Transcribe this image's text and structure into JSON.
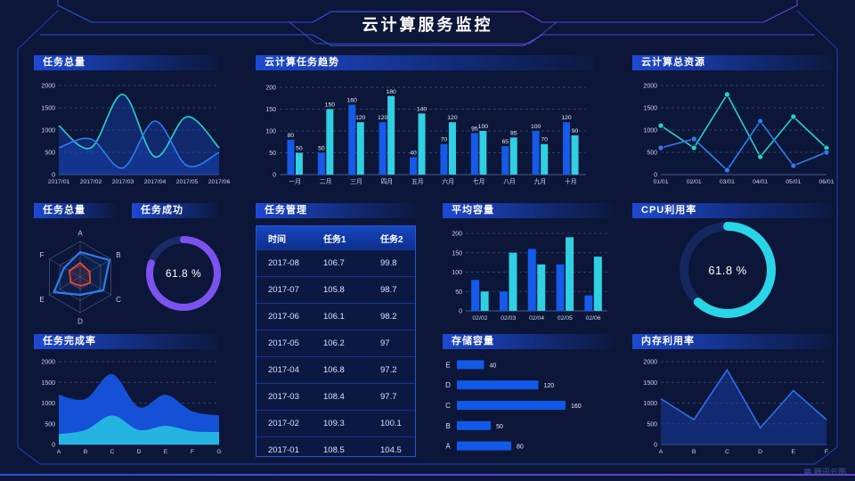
{
  "header": {
    "title": "云计算服务监控"
  },
  "watermark": {
    "label": "腾讯云图"
  },
  "colors": {
    "background": "#0b1638",
    "panel_header": "#1d49d2",
    "series_blue": "#155ae8",
    "series_cyan": "#2fd0e2",
    "line_blue": "#2e7df0",
    "line_cyan": "#28d2cc",
    "gauge_purple": "#7b52ee",
    "gauge_cyan": "#29d6e8",
    "radar_red": "#ff4326"
  },
  "panels": {
    "task_total": {
      "title": "任务总量"
    },
    "task_trend": {
      "title": "云计算任务趋势"
    },
    "total_resource": {
      "title": "云计算总资源"
    },
    "task_radar": {
      "title": "任务总量"
    },
    "task_success": {
      "title": "任务成功",
      "value": "61.8 %"
    },
    "task_manage": {
      "title": "任务管理"
    },
    "avg_capacity": {
      "title": "平均容量"
    },
    "cpu_usage": {
      "title": "CPU利用率",
      "value": "61.8 %"
    },
    "task_completion": {
      "title": "任务完成率"
    },
    "storage": {
      "title": "存储容量"
    },
    "memory": {
      "title": "内存利用率"
    }
  },
  "table": {
    "headers": [
      "时间",
      "任务1",
      "任务2"
    ],
    "rows": [
      [
        "2017-08",
        "106.7",
        "99.8"
      ],
      [
        "2017-07",
        "105.8",
        "98.7"
      ],
      [
        "2017-06",
        "106.1",
        "98.2"
      ],
      [
        "2017-05",
        "106.2",
        "97"
      ],
      [
        "2017-04",
        "106.8",
        "97.2"
      ],
      [
        "2017-03",
        "108.4",
        "97.7"
      ],
      [
        "2017-02",
        "109.3",
        "100.1"
      ],
      [
        "2017-01",
        "108.5",
        "104.5"
      ]
    ]
  },
  "chart_data": [
    {
      "id": "task_total",
      "type": "area",
      "title": "任务总量",
      "smooth": true,
      "x": [
        "2017/01",
        "2017/02",
        "2017/03",
        "2017/04",
        "2017/05",
        "2017/06"
      ],
      "series": [
        {
          "name": "cyan",
          "color": "#28d2cc",
          "values": [
            1100,
            600,
            1800,
            400,
            1300,
            600
          ]
        },
        {
          "name": "blue",
          "color": "#2e7df0",
          "values": [
            600,
            800,
            150,
            1200,
            200,
            500
          ]
        }
      ],
      "ylim": [
        0,
        2000
      ],
      "yticks": [
        0,
        500,
        1000,
        1500,
        2000
      ],
      "fill": "rgba(25,70,190,0.40)"
    },
    {
      "id": "task_trend",
      "type": "bar",
      "title": "云计算任务趋势",
      "labels": true,
      "x": [
        "一月",
        "二月",
        "三月",
        "四月",
        "五月",
        "六月",
        "七月",
        "八月",
        "九月",
        "十月"
      ],
      "series": [
        {
          "name": "任务1",
          "color": "#155ae8",
          "values": [
            80,
            50,
            160,
            120,
            40,
            70,
            95,
            65,
            100,
            120
          ]
        },
        {
          "name": "任务2",
          "color": "#2fd0e2",
          "values": [
            50,
            150,
            120,
            180,
            140,
            120,
            100,
            85,
            70,
            90
          ]
        }
      ],
      "ylim": [
        0,
        200
      ],
      "yticks": [
        0,
        50,
        100,
        150,
        200
      ]
    },
    {
      "id": "total_resource",
      "type": "line",
      "title": "云计算总资源",
      "markers": true,
      "x": [
        "01/01",
        "02/01",
        "03/01",
        "04/01",
        "05/01",
        "06/01"
      ],
      "series": [
        {
          "name": "cyan",
          "color": "#28d2cc",
          "values": [
            1100,
            600,
            1800,
            400,
            1300,
            600
          ]
        },
        {
          "name": "blue",
          "color": "#2e7df0",
          "values": [
            600,
            800,
            100,
            1200,
            200,
            500
          ]
        }
      ],
      "ylim": [
        0,
        2000
      ],
      "yticks": [
        0,
        500,
        1000,
        1500,
        2000
      ]
    },
    {
      "id": "task_radar",
      "type": "radar",
      "title": "任务总量",
      "axes": [
        "A",
        "B",
        "C",
        "D",
        "E",
        "F"
      ],
      "max": 100,
      "series": [
        {
          "name": "blue",
          "color": "#2e7df0",
          "values": [
            70,
            95,
            75,
            50,
            85,
            52
          ]
        },
        {
          "name": "red",
          "color": "#ff4326",
          "values": [
            40,
            30,
            33,
            25,
            30,
            35
          ]
        }
      ]
    },
    {
      "id": "task_success",
      "type": "gauge",
      "title": "任务成功",
      "value": 61.8,
      "display": "61.8 %",
      "arc_fraction": 0.8,
      "color": "#7b52ee",
      "track": "#1c2a66"
    },
    {
      "id": "avg_capacity",
      "type": "bar",
      "title": "平均容量",
      "labels": false,
      "x": [
        "02/02",
        "02/03",
        "02/04",
        "02/05",
        "02/06"
      ],
      "series": [
        {
          "name": "blue",
          "color": "#155ae8",
          "values": [
            80,
            50,
            160,
            120,
            40
          ]
        },
        {
          "name": "cyan",
          "color": "#2fd0e2",
          "values": [
            50,
            150,
            120,
            190,
            140
          ]
        }
      ],
      "ylim": [
        0,
        200
      ],
      "yticks": [
        0,
        50,
        100,
        150,
        200
      ]
    },
    {
      "id": "cpu_usage",
      "type": "gauge",
      "title": "CPU利用率",
      "value": 61.8,
      "display": "61.8 %",
      "arc_fraction": 0.618,
      "color": "#29d6e8",
      "track": "#14275f"
    },
    {
      "id": "task_completion",
      "type": "area",
      "title": "任务完成率",
      "smooth": true,
      "opaque": true,
      "x": [
        "A",
        "B",
        "C",
        "D",
        "E",
        "F",
        "G"
      ],
      "series": [
        {
          "name": "blue",
          "color": "#1551d6",
          "values": [
            1200,
            1100,
            1700,
            900,
            1200,
            800,
            700
          ],
          "fill": "#1551d6"
        },
        {
          "name": "cyan",
          "color": "#25b4e2",
          "values": [
            250,
            350,
            700,
            350,
            450,
            320,
            300
          ],
          "fill": "#25b4e2"
        }
      ],
      "ylim": [
        0,
        2000
      ],
      "yticks": [
        0,
        500,
        1000,
        1500,
        2000
      ]
    },
    {
      "id": "storage",
      "type": "hbar",
      "title": "存储容量",
      "categories": [
        "E",
        "D",
        "C",
        "B",
        "A"
      ],
      "values": [
        40,
        120,
        160,
        50,
        80
      ],
      "xmax": 185,
      "color": "#1159e8"
    },
    {
      "id": "memory",
      "type": "line",
      "title": "内存利用率",
      "markers": false,
      "areafill": "rgba(25,60,160,0.55)",
      "x": [
        "A",
        "B",
        "C",
        "D",
        "E",
        "F"
      ],
      "series": [
        {
          "name": "blue",
          "color": "#2e6fe8",
          "values": [
            1100,
            600,
            1800,
            400,
            1300,
            600
          ]
        }
      ],
      "ylim": [
        0,
        2000
      ],
      "yticks": [
        0,
        500,
        1000,
        1500,
        2000
      ]
    }
  ]
}
